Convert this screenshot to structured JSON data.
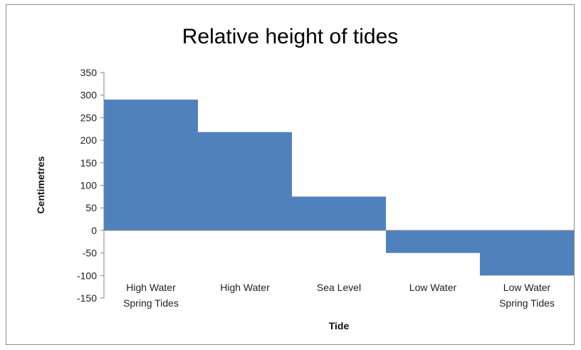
{
  "chart_data": {
    "type": "bar",
    "title": "Relative height of tides",
    "xlabel": "Tide",
    "ylabel": "Centimetres",
    "categories": [
      [
        "High Water",
        "Spring Tides"
      ],
      [
        "High Water"
      ],
      [
        "Sea Level"
      ],
      [
        "Low Water"
      ],
      [
        "Low Water",
        "Spring Tides"
      ]
    ],
    "values": [
      290,
      218,
      75,
      -50,
      -100
    ],
    "ylim": [
      -150,
      350
    ],
    "yticks": [
      350,
      300,
      250,
      200,
      150,
      100,
      50,
      0,
      -50,
      -100,
      -150
    ],
    "grid": false,
    "legend": "none",
    "bar_color": "#4f81bd"
  }
}
